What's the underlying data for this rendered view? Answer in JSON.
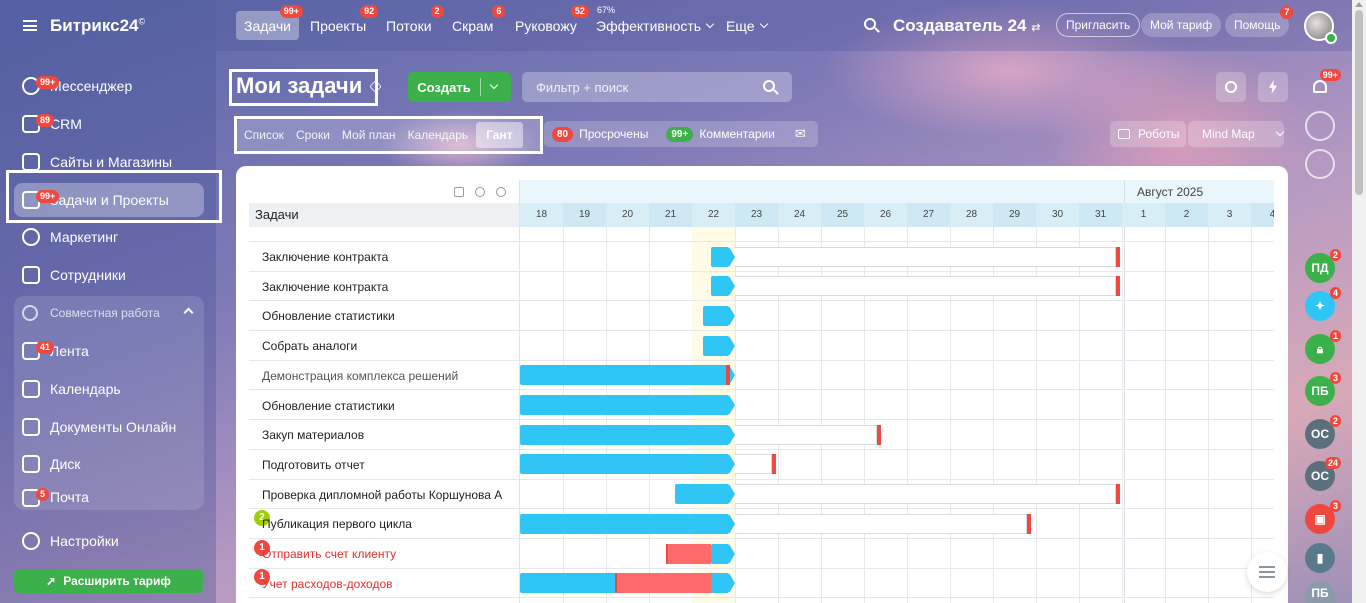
{
  "app": {
    "logo": "Битрикс24",
    "logo_mark": "©"
  },
  "sidebar": {
    "items": [
      {
        "label": "Мессенджер",
        "badge": "99+"
      },
      {
        "label": "CRM",
        "badge": "89"
      },
      {
        "label": "Сайты и Магазины",
        "badge": ""
      },
      {
        "label": "Задачи и Проекты",
        "badge": "99+"
      },
      {
        "label": "Маркетинг",
        "badge": ""
      },
      {
        "label": "Сотрудники",
        "badge": ""
      }
    ],
    "group_title": "Совместная работа",
    "group_items": [
      {
        "label": "Лента",
        "badge": "41"
      },
      {
        "label": "Календарь",
        "badge": ""
      },
      {
        "label": "Документы Онлайн",
        "badge": ""
      },
      {
        "label": "Диск",
        "badge": ""
      },
      {
        "label": "Почта",
        "badge": "5"
      }
    ],
    "settings": "Настройки",
    "upgrade": "Расширить тариф"
  },
  "topnav": {
    "items": [
      {
        "label": "Задачи",
        "badge": "99+"
      },
      {
        "label": "Проекты",
        "badge": "92"
      },
      {
        "label": "Потоки",
        "badge": "2"
      },
      {
        "label": "Скрам",
        "badge": "6"
      },
      {
        "label": "Руковожу",
        "badge": "52"
      },
      {
        "label": "Эффективность",
        "pct": "67%"
      },
      {
        "label": "Еще"
      }
    ],
    "creator": "Создаватель 24",
    "invite": "Пригласить",
    "tariff": "Мой тариф",
    "help": "Помощь",
    "help_badge": "7"
  },
  "header": {
    "title": "Мои задачи",
    "create": "Создать",
    "filter_placeholder": "Фильтр + поиск",
    "views": [
      "Список",
      "Сроки",
      "Мой план",
      "Календарь",
      "Гант"
    ],
    "overdue_count": "80",
    "overdue_label": "Просрочены",
    "comments_count": "99+",
    "comments_label": "Комментарии",
    "robots": "Роботы",
    "mindmap": "Mind Map"
  },
  "gantt": {
    "column_header": "Задачи",
    "month": "Август 2025",
    "days": [
      "18",
      "19",
      "20",
      "21",
      "22",
      "23",
      "24",
      "25",
      "26",
      "27",
      "28",
      "29",
      "30",
      "31",
      "1",
      "2",
      "3",
      "4"
    ],
    "today_index": 4,
    "tasks": [
      {
        "title": "Заключение контракта",
        "style": "normal",
        "badge": "",
        "bar": [
          4.45,
          5.0
        ],
        "deadline": 13.85
      },
      {
        "title": "Заключение контракта",
        "style": "normal",
        "badge": "",
        "bar": [
          4.45,
          5.0
        ],
        "deadline": 13.85
      },
      {
        "title": "Обновление статистики",
        "style": "normal",
        "badge": "",
        "bar": [
          4.25,
          5.0
        ],
        "deadline": null
      },
      {
        "title": "Собрать аналоги",
        "style": "normal",
        "badge": "",
        "bar": [
          4.25,
          5.0
        ],
        "deadline": null
      },
      {
        "title": "Демонстрация комплекса решений",
        "style": "muted",
        "badge": "",
        "bar": [
          0,
          5.0
        ],
        "deadline": 4.8
      },
      {
        "title": "Обновление статистики",
        "style": "normal",
        "badge": "",
        "bar": [
          0,
          5.0
        ],
        "deadline": null
      },
      {
        "title": "Закуп материалов",
        "style": "normal",
        "badge": "",
        "bar": [
          0,
          5.0
        ],
        "deadline": 8.3
      },
      {
        "title": "Подготовить отчет",
        "style": "normal",
        "badge": "",
        "bar": [
          0,
          5.0
        ],
        "deadline": 5.85
      },
      {
        "title": "Проверка дипломной работы Коршунова А",
        "style": "normal",
        "badge": "",
        "bar": [
          3.6,
          5.0
        ],
        "deadline": 13.85
      },
      {
        "title": "Публикация первого цикла",
        "style": "normal",
        "badge": "2",
        "bar": [
          0,
          5.0
        ],
        "deadline": 11.8
      },
      {
        "title": "Отправить счет клиенту",
        "style": "red",
        "badge": "1",
        "bar": [
          4.45,
          5.0
        ],
        "overdue": [
          3.4,
          4.45
        ]
      },
      {
        "title": "Учет расходов-доходов",
        "style": "red",
        "badge": "1",
        "bar": [
          0,
          5.0
        ],
        "overdue": [
          2.2,
          4.45
        ]
      }
    ]
  },
  "rail": {
    "badges": [
      "99+",
      "2",
      "4",
      "1",
      "3",
      "2",
      "24",
      "3"
    ],
    "avatars": [
      "ПД",
      "ПБ",
      "ОС",
      "ОС",
      "ПБ"
    ]
  },
  "colors": {
    "accent": "#2fc6f6",
    "success": "#3cb04a",
    "danger": "#f0483e"
  }
}
